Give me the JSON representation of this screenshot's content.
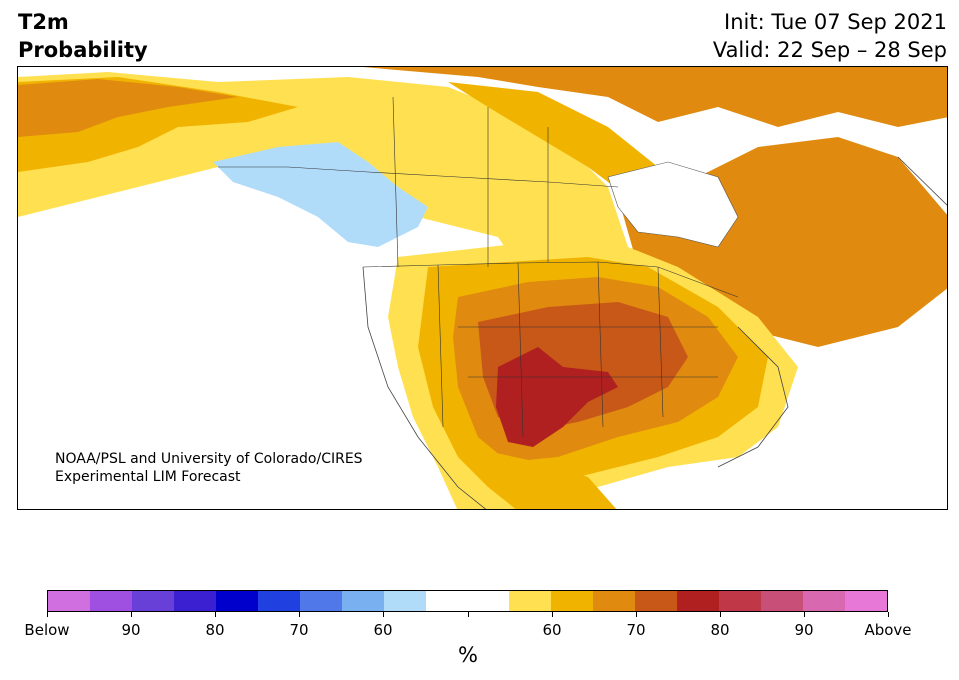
{
  "header": {
    "variable": "T2m",
    "product": "Probability",
    "init": "Init: Tue 07 Sep 2021",
    "valid": "Valid: 22 Sep – 28 Sep"
  },
  "credit": {
    "line1": "NOAA/PSL and University of Colorado/CIRES",
    "line2": "Experimental LIM Forecast"
  },
  "colorbar": {
    "unit": "%",
    "colors": [
      "#d070e0",
      "#a050e0",
      "#6840d8",
      "#3a20d0",
      "#0000cc",
      "#2040e0",
      "#5078e8",
      "#78b0f0",
      "#b0dcfa",
      "#ffffff",
      "#ffffff",
      "#ffe050",
      "#f0b400",
      "#e08a10",
      "#c85818",
      "#b02020",
      "#c03848",
      "#c85078",
      "#d868b0",
      "#e878d8"
    ],
    "tick_labels": [
      "Below",
      "90",
      "80",
      "70",
      "60",
      "",
      "60",
      "70",
      "80",
      "90",
      "Above"
    ]
  },
  "map_legend": {
    "near_normal": "#ffffff",
    "cool_60": "#b0dcfa",
    "warm_60": "#ffe050",
    "warm_65": "#f0b400",
    "warm_70": "#e08a10",
    "warm_75": "#c85818",
    "warm_80": "#b02020"
  }
}
